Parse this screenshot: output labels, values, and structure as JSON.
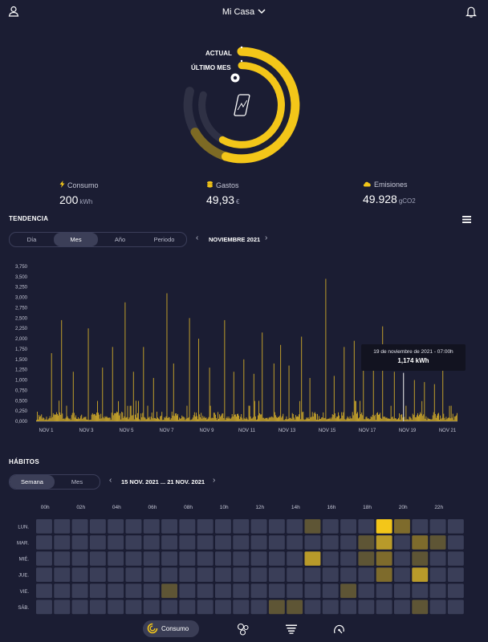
{
  "header": {
    "title": "Mi Casa",
    "user_icon": "user-icon",
    "bell_icon": "bell-icon",
    "chevron_icon": "chevron-down-icon"
  },
  "ring": {
    "actual_label": "ACTUAL",
    "ultimo_label": "ÚLTIMO MES",
    "actual_color": "#f3c619",
    "ultimo_color": "#f3c619",
    "faded_color": "#7d6a24",
    "track_color": "#2f3145",
    "center_icon": "phone-chart-icon"
  },
  "stats": [
    {
      "label": "Consumo",
      "value": "200",
      "unit": "kWh",
      "icon": "bolt-icon"
    },
    {
      "label": "Gastos",
      "value": "49,93",
      "unit": "€",
      "icon": "coins-icon"
    },
    {
      "label": "Emisiones",
      "value": "49.928",
      "unit": "gCO2",
      "icon": "cloud-icon"
    }
  ],
  "tendencia": {
    "title": "TENDENCIA",
    "tabs": [
      "Día",
      "Mes",
      "Año",
      "Periodo"
    ],
    "active_tab": "Mes",
    "period_label": "NOVIEMBRE 2021",
    "menu_icon": "menu-icon"
  },
  "tooltip": {
    "line1": "19 de noviembre de 2021 - 07:00h",
    "line2": "1,174 kWh"
  },
  "chart_data": {
    "type": "bar",
    "ylim": [
      0,
      3.75
    ],
    "y_ticks": [
      "0,000",
      "0,250",
      "0,500",
      "0,750",
      "1,000",
      "1,250",
      "1,500",
      "1,750",
      "2,000",
      "2,250",
      "2,500",
      "2,750",
      "3,000",
      "3,250",
      "3,500",
      "3,750"
    ],
    "x_tick_labels": [
      "NOV 1",
      "NOV 3",
      "NOV 5",
      "NOV 7",
      "NOV 9",
      "NOV 11",
      "NOV 13",
      "NOV 15",
      "NOV 17",
      "NOV 19",
      "NOV 21"
    ],
    "bar_color": "#c9a52a",
    "highlight_color": "#ffffff",
    "days": 21,
    "hours_per_day": 24,
    "spikes": [
      {
        "day": 1,
        "hour": 18,
        "value": 1.65
      },
      {
        "day": 2,
        "hour": 6,
        "value": 2.45
      },
      {
        "day": 2,
        "hour": 20,
        "value": 1.2
      },
      {
        "day": 3,
        "hour": 14,
        "value": 2.25
      },
      {
        "day": 4,
        "hour": 7,
        "value": 1.3
      },
      {
        "day": 4,
        "hour": 19,
        "value": 1.8
      },
      {
        "day": 5,
        "hour": 10,
        "value": 2.88
      },
      {
        "day": 5,
        "hour": 20,
        "value": 1.2
      },
      {
        "day": 6,
        "hour": 8,
        "value": 1.8
      },
      {
        "day": 6,
        "hour": 20,
        "value": 1.05
      },
      {
        "day": 7,
        "hour": 12,
        "value": 3.1
      },
      {
        "day": 7,
        "hour": 20,
        "value": 1.4
      },
      {
        "day": 8,
        "hour": 15,
        "value": 2.5
      },
      {
        "day": 9,
        "hour": 2,
        "value": 2.0
      },
      {
        "day": 9,
        "hour": 15,
        "value": 1.3
      },
      {
        "day": 10,
        "hour": 9,
        "value": 2.45
      },
      {
        "day": 10,
        "hour": 20,
        "value": 1.2
      },
      {
        "day": 11,
        "hour": 8,
        "value": 1.5
      },
      {
        "day": 11,
        "hour": 20,
        "value": 1.15
      },
      {
        "day": 12,
        "hour": 6,
        "value": 2.15
      },
      {
        "day": 12,
        "hour": 20,
        "value": 1.4
      },
      {
        "day": 13,
        "hour": 4,
        "value": 1.85
      },
      {
        "day": 13,
        "hour": 14,
        "value": 1.35
      },
      {
        "day": 14,
        "hour": 5,
        "value": 2.05
      },
      {
        "day": 14,
        "hour": 15,
        "value": 1.05
      },
      {
        "day": 15,
        "hour": 10,
        "value": 3.45
      },
      {
        "day": 15,
        "hour": 20,
        "value": 1.1
      },
      {
        "day": 16,
        "hour": 8,
        "value": 1.8
      },
      {
        "day": 16,
        "hour": 20,
        "value": 1.95
      },
      {
        "day": 17,
        "hour": 7,
        "value": 1.6
      },
      {
        "day": 17,
        "hour": 19,
        "value": 1.3
      },
      {
        "day": 18,
        "hour": 6,
        "value": 2.3
      },
      {
        "day": 18,
        "hour": 20,
        "value": 1.2
      },
      {
        "day": 19,
        "hour": 7,
        "value": 1.174,
        "highlight": true
      },
      {
        "day": 19,
        "hour": 20,
        "value": 1.0
      },
      {
        "day": 20,
        "hour": 8,
        "value": 0.95
      },
      {
        "day": 20,
        "hour": 20,
        "value": 0.9
      },
      {
        "day": 21,
        "hour": 6,
        "value": 1.25
      }
    ]
  },
  "habitos": {
    "title": "HÁBITOS",
    "tabs": [
      "Semana",
      "Mes"
    ],
    "active_tab": "Semana",
    "period_label": "15 NOV. 2021 ... 21 NOV. 2021",
    "hour_labels": [
      "00h",
      "02h",
      "04h",
      "06h",
      "08h",
      "10h",
      "12h",
      "14h",
      "16h",
      "18h",
      "20h",
      "22h"
    ],
    "day_labels": [
      "LUN.",
      "MAR.",
      "MIÉ.",
      "JUE.",
      "VIE.",
      "SÁB."
    ],
    "colors": [
      "#3a3e58",
      "#5e5535",
      "#7e6b2c",
      "#b89a2a",
      "#f3c619"
    ],
    "heatmap": [
      [
        0,
        0,
        0,
        0,
        0,
        0,
        0,
        0,
        0,
        0,
        0,
        0,
        0,
        0,
        0,
        1,
        0,
        0,
        0,
        4,
        2,
        0,
        0,
        0
      ],
      [
        0,
        0,
        0,
        0,
        0,
        0,
        0,
        0,
        0,
        0,
        0,
        0,
        0,
        0,
        0,
        0,
        0,
        0,
        1,
        3,
        0,
        2,
        1,
        0
      ],
      [
        0,
        0,
        0,
        0,
        0,
        0,
        0,
        0,
        0,
        0,
        0,
        0,
        0,
        0,
        0,
        3,
        0,
        0,
        1,
        2,
        0,
        1,
        0,
        0
      ],
      [
        0,
        0,
        0,
        0,
        0,
        0,
        0,
        0,
        0,
        0,
        0,
        0,
        0,
        0,
        0,
        0,
        0,
        0,
        0,
        2,
        0,
        3,
        0,
        0
      ],
      [
        0,
        0,
        0,
        0,
        0,
        0,
        0,
        1,
        0,
        0,
        0,
        0,
        0,
        0,
        0,
        0,
        0,
        1,
        0,
        0,
        0,
        0,
        0,
        0
      ],
      [
        0,
        0,
        0,
        0,
        0,
        0,
        0,
        0,
        0,
        0,
        0,
        0,
        0,
        1,
        1,
        0,
        0,
        0,
        0,
        0,
        0,
        1,
        0,
        0
      ]
    ]
  },
  "bottom_nav": {
    "items": [
      {
        "label": "Consumo",
        "icon": "ring-chart-icon",
        "active": true
      },
      {
        "label": "",
        "icon": "bubbles-icon"
      },
      {
        "label": "",
        "icon": "filter-icon"
      },
      {
        "label": "",
        "icon": "gauge-icon"
      }
    ]
  }
}
